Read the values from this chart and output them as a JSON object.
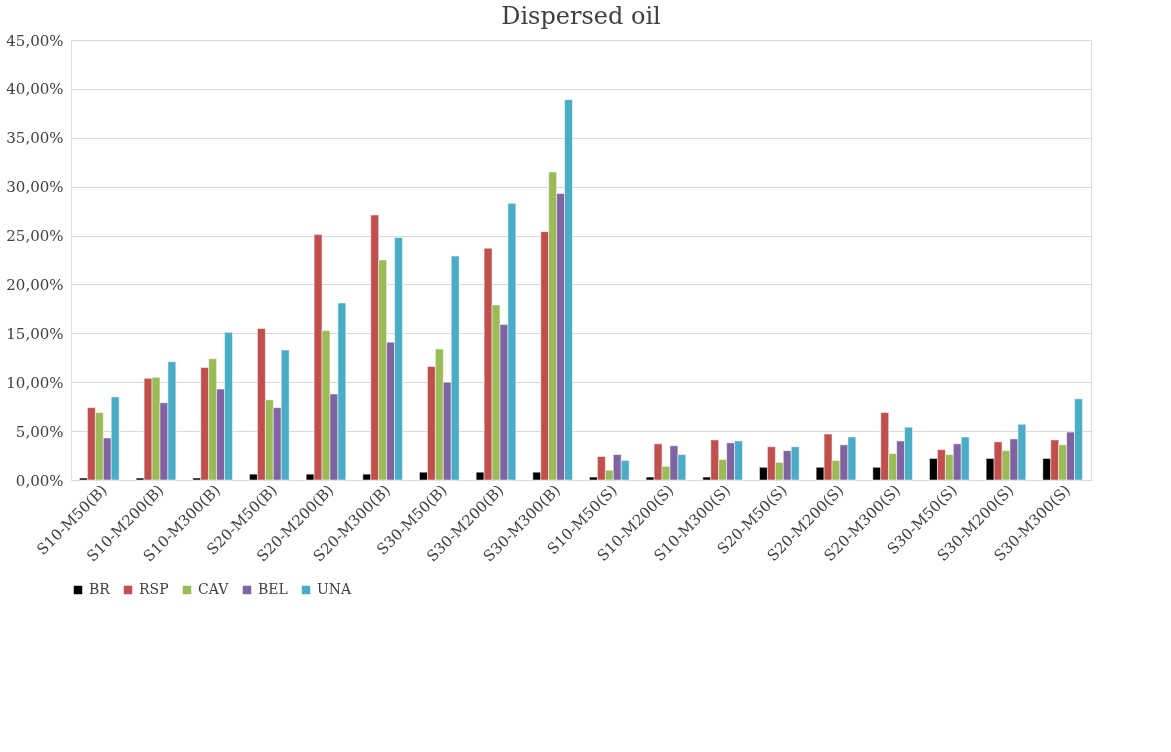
{
  "chart_data": {
    "type": "bar",
    "title": "Dispersed oil",
    "categories": [
      "S10-M50(B)",
      "S10-M200(B)",
      "S10-M300(B)",
      "S20-M50(B)",
      "S20-M200(B)",
      "S20-M300(B)",
      "S30-M50(B)",
      "S30-M200(B)",
      "S30-M300(B)",
      "S10-M50(S)",
      "S10-M200(S)",
      "S10-M300(S)",
      "S20-M50(S)",
      "S20-M200(S)",
      "S20-M300(S)",
      "S30-M50(S)",
      "S30-M200(S)",
      "S30-M300(S)"
    ],
    "series": [
      {
        "name": "BR",
        "color": "#000000",
        "values": [
          0.2,
          0.2,
          0.2,
          0.6,
          0.6,
          0.6,
          0.8,
          0.8,
          0.8,
          0.3,
          0.3,
          0.3,
          1.3,
          1.3,
          1.3,
          2.2,
          2.2,
          2.2
        ]
      },
      {
        "name": "RSP",
        "color": "#c0504d",
        "values": [
          7.4,
          10.4,
          11.5,
          15.5,
          25.1,
          27.1,
          11.6,
          23.7,
          25.4,
          2.4,
          3.7,
          4.1,
          3.4,
          4.7,
          6.9,
          3.1,
          3.9,
          4.1
        ]
      },
      {
        "name": "CAV",
        "color": "#9bbb59",
        "values": [
          6.9,
          10.5,
          12.4,
          8.2,
          15.3,
          22.5,
          13.4,
          17.9,
          31.5,
          1.0,
          1.4,
          2.1,
          1.8,
          2.0,
          2.7,
          2.6,
          3.0,
          3.6
        ]
      },
      {
        "name": "BEL",
        "color": "#8064a2",
        "values": [
          4.3,
          7.9,
          9.3,
          7.4,
          8.8,
          14.1,
          10.0,
          15.9,
          29.3,
          2.6,
          3.5,
          3.8,
          3.0,
          3.6,
          4.0,
          3.7,
          4.2,
          4.9
        ]
      },
      {
        "name": "UNA",
        "color": "#4bacc6",
        "values": [
          8.5,
          12.1,
          15.1,
          13.3,
          18.1,
          24.8,
          22.9,
          28.3,
          38.9,
          2.0,
          2.6,
          4.0,
          3.4,
          4.4,
          5.4,
          4.4,
          5.7,
          8.3
        ]
      }
    ],
    "ylim": [
      0,
      45
    ],
    "yticks": [
      {
        "value": 0,
        "label": "0,00%"
      },
      {
        "value": 5,
        "label": "5,00%"
      },
      {
        "value": 10,
        "label": "10,00%"
      },
      {
        "value": 15,
        "label": "15,00%"
      },
      {
        "value": 20,
        "label": "20,00%"
      },
      {
        "value": 25,
        "label": "25,00%"
      },
      {
        "value": 30,
        "label": "30,00%"
      },
      {
        "value": 35,
        "label": "35,00%"
      },
      {
        "value": 40,
        "label": "40,00%"
      },
      {
        "value": 45,
        "label": "45,00%"
      }
    ],
    "grid": "y",
    "legend": "bottom"
  }
}
